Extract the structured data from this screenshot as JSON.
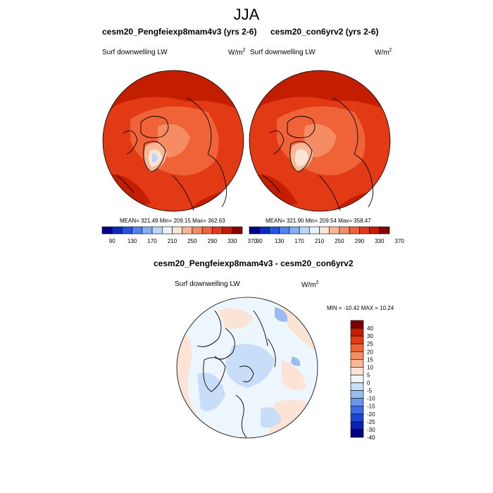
{
  "figure": {
    "title": "JJA",
    "panel_left": {
      "title": "cesm20_Pengfeiexp8mam4v3 (yrs 2-6)",
      "variable": "Surf downwelling LW",
      "unit_base": "W/m",
      "unit_exp": "2",
      "stats": "MEAN= 321.49  Min= 209.15  Max= 362.63"
    },
    "panel_right": {
      "title": "cesm20_con6yrv2 (yrs 2-6)",
      "variable": "Surf downwelling LW",
      "unit_base": "W/m",
      "unit_exp": "2",
      "stats": "MEAN= 321.90  Min= 209.54  Max= 358.47"
    },
    "panel_diff": {
      "title": "cesm20_Pengfeiexp8mam4v3 - cesm20_con6yrv2",
      "variable": "Surf downwelling LW",
      "unit_base": "W/m",
      "unit_exp": "2",
      "stats": "MIN = -10.42 MAX =  10.24"
    }
  },
  "colorbar_abs": {
    "colors": [
      "#00008c",
      "#0c2bbd",
      "#1f55e0",
      "#4f82f0",
      "#86aef5",
      "#bcd6fa",
      "#e8f2fc",
      "#fbe4d6",
      "#f8b898",
      "#f58c64",
      "#f06238",
      "#e23a14",
      "#c41e00",
      "#8c0000"
    ],
    "labels": [
      "90",
      "130",
      "170",
      "210",
      "250",
      "290",
      "330",
      "370"
    ]
  },
  "colorbar_diff": {
    "colors": [
      "#7a0000",
      "#c41e00",
      "#e23a14",
      "#f06238",
      "#f58c64",
      "#f8b898",
      "#fbe4d6",
      "#eef6fd",
      "#c8ddf7",
      "#99bdf2",
      "#6a97ea",
      "#3d6ee0",
      "#1c46d2",
      "#0a22b0",
      "#000080"
    ],
    "labels": [
      "40",
      "30",
      "25",
      "20",
      "15",
      "10",
      "5",
      "0",
      "-5",
      "-10",
      "-15",
      "-20",
      "-25",
      "-30",
      "-40"
    ]
  }
}
